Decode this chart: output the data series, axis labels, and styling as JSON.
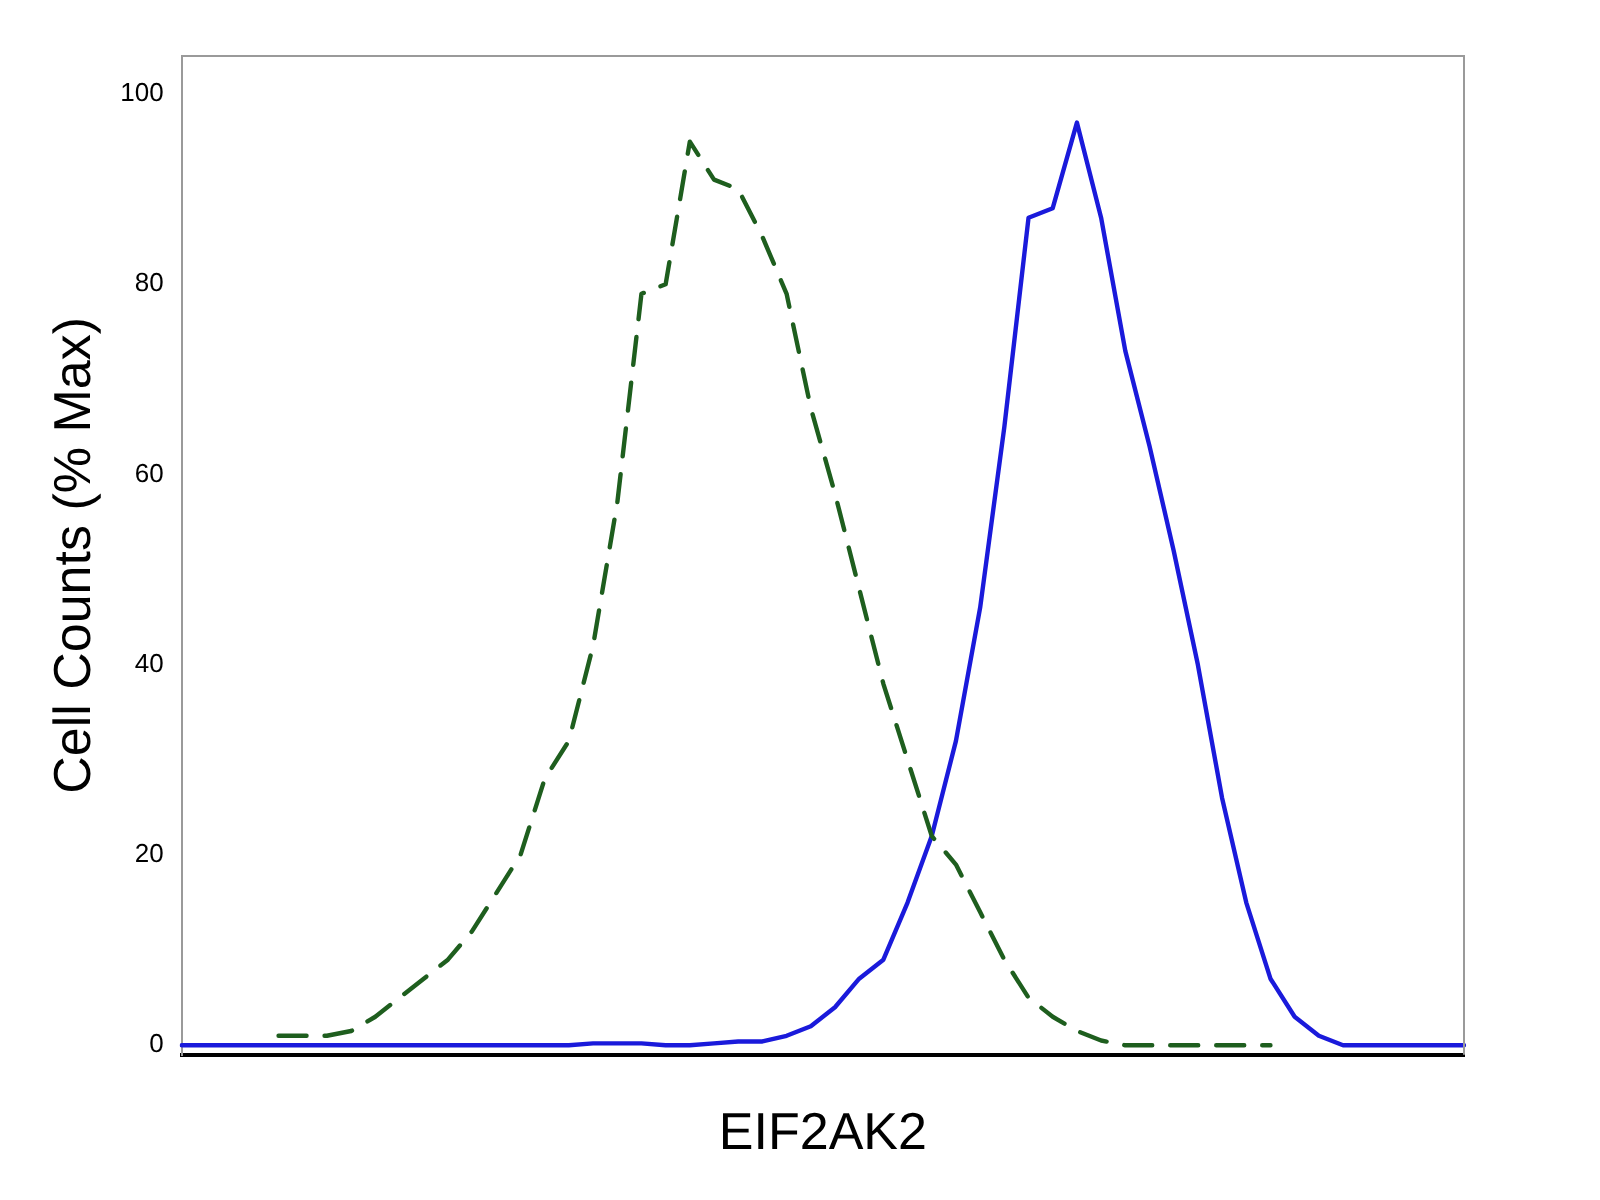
{
  "chart_data": {
    "type": "line",
    "xlabel": "EIF2AK2",
    "ylabel": "Cell Counts (% Max)",
    "categories": [
      null,
      null,
      null,
      null,
      null,
      null,
      null,
      null,
      null,
      null,
      null,
      null,
      null,
      null,
      null,
      null,
      null,
      null,
      null,
      null,
      null,
      null,
      null,
      null,
      null,
      null,
      null,
      null,
      null,
      null,
      null,
      null,
      null,
      null,
      null,
      null,
      null,
      null,
      null,
      null,
      null,
      null,
      null,
      null,
      null,
      null,
      null,
      null,
      null,
      null,
      null,
      null,
      null,
      null
    ],
    "series": [
      {
        "color": "#1e5e1e",
        "line_style": "dashed",
        "values": [
          null,
          null,
          null,
          null,
          1,
          1,
          1,
          1.5,
          3,
          5,
          7,
          9,
          12,
          16,
          20,
          28,
          32,
          42,
          57,
          79,
          80,
          95,
          91,
          90,
          85,
          79,
          67,
          58,
          48,
          38,
          30,
          22,
          19,
          14,
          9,
          5,
          3,
          1.5,
          0.5,
          0,
          0,
          0,
          0,
          0,
          0,
          0,
          null,
          null,
          null,
          null,
          null,
          null,
          null,
          null
        ]
      },
      {
        "color": "#1a1adb",
        "line_style": "solid",
        "values": [
          0,
          0,
          0,
          0,
          0,
          0,
          0,
          0,
          0,
          0,
          0,
          0,
          0,
          0,
          0,
          0,
          0,
          0.2,
          0.2,
          0.2,
          0,
          0,
          0.2,
          0.4,
          0.4,
          1,
          2,
          4,
          7,
          9,
          15,
          22,
          32,
          46,
          65,
          87,
          88,
          97,
          87,
          73,
          63,
          52,
          40,
          26,
          15,
          7,
          3,
          1,
          0,
          0,
          0,
          0,
          0,
          0
        ]
      }
    ],
    "ylim": [
      -1,
      104
    ],
    "yticks": [
      0,
      20,
      40,
      60,
      80,
      100
    ],
    "grid": false,
    "legend": false,
    "marker": "none"
  }
}
